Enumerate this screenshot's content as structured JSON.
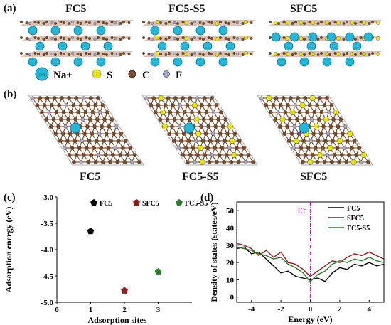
{
  "panel_labels": {
    "a": "(a)",
    "b": "(b)",
    "c": "(c)",
    "d": "(d)"
  },
  "structures": {
    "titles": [
      "FC5",
      "FC5-S5",
      "SFC5"
    ],
    "ion_label": "Na",
    "legend": [
      {
        "label": "Na+",
        "color": "#27b6d8"
      },
      {
        "label": "S",
        "color": "#e6e21a"
      },
      {
        "label": "C",
        "color": "#7a4a2a"
      },
      {
        "label": "F",
        "color": "#a7a7d6"
      }
    ],
    "top_view_labels": [
      "FC5",
      "FC5-S5",
      "SFC5"
    ]
  },
  "chart_data": [
    {
      "type": "scatter",
      "ylabel": "Adsorption energy (eV)",
      "xlabel": "Adsorption sites",
      "xlim": [
        0,
        4
      ],
      "ylim": [
        -5.0,
        -3.0
      ],
      "xticks": [
        "0",
        "1",
        "2",
        "3"
      ],
      "yticks": [
        "-3.0",
        "-3.5",
        "-4.0",
        "-4.5",
        "-5.0"
      ],
      "legend_position": "top",
      "series": [
        {
          "name": "FC5",
          "color": "#000000",
          "x": [
            1
          ],
          "y": [
            -3.65
          ]
        },
        {
          "name": "SFC5",
          "color": "#8b1a1a",
          "x": [
            2
          ],
          "y": [
            -4.78
          ]
        },
        {
          "name": "FC5-S5",
          "color": "#2e7d2e",
          "x": [
            3
          ],
          "y": [
            -4.42
          ]
        }
      ]
    },
    {
      "type": "line",
      "ylabel": "Density of states (states/eV)",
      "xlabel": "Energy (eV)",
      "xlim": [
        -5,
        5
      ],
      "ylim": [
        -3,
        55
      ],
      "xticks": [
        "-4",
        "-2",
        "0",
        "2",
        "4"
      ],
      "yticks": [
        "0",
        "10",
        "20",
        "30",
        "40",
        "50"
      ],
      "annotation": "Ef",
      "legend_position": "top-right",
      "series": [
        {
          "name": "FC5",
          "color": "#000000",
          "x": [
            -5,
            -4.5,
            -4,
            -3.5,
            -3,
            -2.5,
            -2,
            -1.5,
            -1,
            -0.5,
            0,
            0.5,
            1,
            1.5,
            2,
            2.5,
            3,
            3.5,
            4,
            4.5,
            5
          ],
          "y": [
            28,
            29,
            25,
            26,
            22,
            18,
            14,
            15,
            12,
            11,
            10,
            11,
            9,
            14,
            17,
            16,
            19,
            18,
            20,
            18,
            19
          ]
        },
        {
          "name": "SFC5",
          "color": "#8b1a1a",
          "x": [
            -5,
            -4.5,
            -4,
            -3.5,
            -3,
            -2.5,
            -2,
            -1.5,
            -1,
            -0.5,
            0,
            0.5,
            1,
            1.5,
            2,
            2.5,
            3,
            3.5,
            4,
            4.5,
            5
          ],
          "y": [
            31,
            30,
            28,
            24,
            27,
            23,
            26,
            20,
            19,
            16,
            12,
            15,
            18,
            21,
            20,
            23,
            25,
            24,
            26,
            24,
            22
          ]
        },
        {
          "name": "FC5-S5",
          "color": "#2e7d2e",
          "x": [
            -5,
            -4.5,
            -4,
            -3.5,
            -3,
            -2.5,
            -2,
            -1.5,
            -1,
            -0.5,
            0,
            0.5,
            1,
            1.5,
            2,
            2.5,
            3,
            3.5,
            4,
            4.5,
            5
          ],
          "y": [
            29,
            28,
            27,
            25,
            24,
            22,
            23,
            19,
            17,
            14,
            9,
            13,
            15,
            19,
            21,
            20,
            22,
            21,
            23,
            21,
            20
          ]
        }
      ]
    }
  ]
}
